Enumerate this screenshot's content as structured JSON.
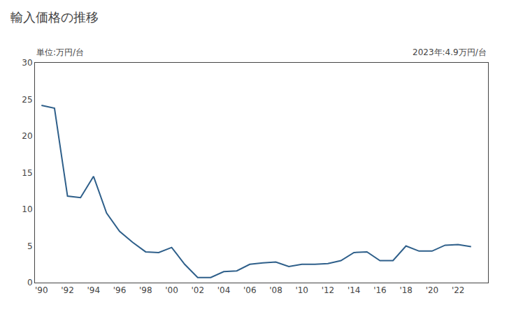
{
  "chart_data": {
    "type": "line",
    "title": "輸入価格の推移",
    "ylabel": "単位:万円/台",
    "annotation": "2023年:4.9万円/台",
    "x": [
      1990,
      1991,
      1992,
      1993,
      1994,
      1995,
      1996,
      1997,
      1998,
      1999,
      2000,
      2001,
      2002,
      2003,
      2004,
      2005,
      2006,
      2007,
      2008,
      2009,
      2010,
      2011,
      2012,
      2013,
      2014,
      2015,
      2016,
      2017,
      2018,
      2019,
      2020,
      2021,
      2022,
      2023
    ],
    "values": [
      24.2,
      23.8,
      11.8,
      11.6,
      14.5,
      9.5,
      7.0,
      5.5,
      4.2,
      4.1,
      4.8,
      2.5,
      0.7,
      0.7,
      1.5,
      1.6,
      2.5,
      2.7,
      2.8,
      2.2,
      2.5,
      2.5,
      2.6,
      3.0,
      4.1,
      4.2,
      3.0,
      3.0,
      5.0,
      4.3,
      4.3,
      5.1,
      5.2,
      4.9
    ],
    "color": "#2e5f8a",
    "xlim": [
      1989.5,
      2024.3
    ],
    "xticks": [
      {
        "value": 1990,
        "label": "'90"
      },
      {
        "value": 1992,
        "label": "'92"
      },
      {
        "value": 1994,
        "label": "'94"
      },
      {
        "value": 1996,
        "label": "'96"
      },
      {
        "value": 1998,
        "label": "'98"
      },
      {
        "value": 2000,
        "label": "'00"
      },
      {
        "value": 2002,
        "label": "'02"
      },
      {
        "value": 2004,
        "label": "'04"
      },
      {
        "value": 2006,
        "label": "'06"
      },
      {
        "value": 2008,
        "label": "'08"
      },
      {
        "value": 2010,
        "label": "'10"
      },
      {
        "value": 2012,
        "label": "'12"
      },
      {
        "value": 2014,
        "label": "'14"
      },
      {
        "value": 2016,
        "label": "'16"
      },
      {
        "value": 2018,
        "label": "'18"
      },
      {
        "value": 2020,
        "label": "'20"
      },
      {
        "value": 2022,
        "label": "'22"
      }
    ],
    "ylim": [
      0,
      30
    ],
    "yticks": [
      0,
      5,
      10,
      15,
      20,
      25,
      30
    ],
    "grid": false
  }
}
